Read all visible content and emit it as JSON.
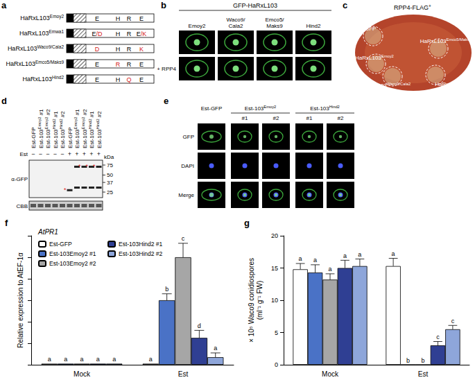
{
  "figure": {
    "a": {
      "label": "a",
      "rows": [
        {
          "name": {
            "text": "HaRxL103",
            "sup": "Emoy2"
          },
          "residues": [
            [
              [
                "E",
                "#000000"
              ]
            ],
            [
              [
                "H",
                "#000000"
              ]
            ],
            [
              [
                "R",
                "#000000"
              ]
            ],
            [
              [
                "E",
                "#000000"
              ]
            ]
          ]
        },
        {
          "name": {
            "text": "HaRxL103",
            "sup": "Emwa1"
          },
          "residues": [
            [
              [
                "E",
                "#000000"
              ],
              [
                "/D",
                "#d42020"
              ]
            ],
            [
              [
                "H",
                "#000000"
              ]
            ],
            [
              [
                "R",
                "#000000"
              ]
            ],
            [
              [
                "E",
                "#000000"
              ],
              [
                "/K",
                "#d42020"
              ]
            ]
          ]
        },
        {
          "name": {
            "text": "HaRxL103",
            "sup": "Waco9/Cala2"
          },
          "residues": [
            [
              [
                "D",
                "#d42020"
              ]
            ],
            [
              [
                "H",
                "#000000"
              ]
            ],
            [
              [
                "R",
                "#000000"
              ]
            ],
            [
              [
                "K",
                "#d42020"
              ]
            ]
          ]
        },
        {
          "name": {
            "text": "HaRxL103",
            "sup": "Emco5/Maks9"
          },
          "residues": [
            [
              [
                "E",
                "#000000"
              ]
            ],
            [
              [
                "R",
                "#d42020"
              ]
            ],
            [
              [
                "R",
                "#000000"
              ]
            ],
            [
              [
                "E",
                "#000000"
              ]
            ]
          ]
        },
        {
          "name": {
            "text": "HaRxL103",
            "sup": "Hind2"
          },
          "residues": [
            [
              [
                "E",
                "#000000"
              ]
            ],
            [
              [
                "H",
                "#000000"
              ]
            ],
            [
              [
                "Q",
                "#d42020"
              ]
            ],
            [
              [
                "E",
                "#000000"
              ]
            ]
          ]
        }
      ]
    },
    "b": {
      "label": "b",
      "title": "GFP-HaRxL103",
      "columns": [
        [
          "Emoy2"
        ],
        [
          "Waco9/",
          "Cala2"
        ],
        [
          "Emco5/",
          "Maks9"
        ],
        [
          "Hind2"
        ]
      ],
      "row_label": "+ RPP4"
    },
    "c": {
      "label": "c",
      "header": {
        "text": "RPP4-FLAG",
        "sup": "+"
      },
      "spots": [
        {
          "text": "GFP"
        },
        {
          "text": "HaRxL103",
          "sup": "Emoy2"
        },
        {
          "text": "HaRxL103",
          "sup": "Emco5/Maks9"
        },
        {
          "text": "HaRxL103",
          "sup": "Waco9/Cala2"
        },
        {
          "text": "HaRxL103",
          "sup": "Hind2"
        }
      ]
    },
    "d": {
      "label": "d",
      "lanes": [
        {
          "name": {
            "text": "Est-GFP"
          },
          "treatment": "−",
          "bands": []
        },
        {
          "name": {
            "text": "Est-103",
            "sup": "Emoy2",
            "after": " #1"
          },
          "treatment": "−",
          "bands": []
        },
        {
          "name": {
            "text": "Est-103",
            "sup": "Emoy2",
            "after": " #2"
          },
          "treatment": "−",
          "bands": []
        },
        {
          "name": {
            "text": "Est-103",
            "sup": "Hind2",
            "after": " #1"
          },
          "treatment": "−",
          "bands": []
        },
        {
          "name": {
            "text": "Est-103",
            "sup": "Hind2",
            "after": " #2"
          },
          "treatment": "−",
          "bands": []
        },
        {
          "name": {
            "text": "Est-GFP"
          },
          "treatment": "+",
          "bands": [
            {
              "kDa": 27,
              "marked": true
            }
          ]
        },
        {
          "name": {
            "text": "Est-103",
            "sup": "Emoy2",
            "after": " #1"
          },
          "treatment": "+",
          "bands": [
            {
              "kDa": 70,
              "marked": false
            },
            {
              "kDa": 30,
              "marked": false
            }
          ]
        },
        {
          "name": {
            "text": "Est-103",
            "sup": "Emoy2",
            "after": " #2"
          },
          "treatment": "+",
          "bands": [
            {
              "kDa": 70,
              "marked": true
            },
            {
              "kDa": 30,
              "marked": false
            }
          ]
        },
        {
          "name": {
            "text": "Est-103",
            "sup": "Hind2",
            "after": " #1"
          },
          "treatment": "+",
          "bands": [
            {
              "kDa": 70,
              "marked": true
            },
            {
              "kDa": 30,
              "marked": false
            }
          ]
        },
        {
          "name": {
            "text": "Est-103",
            "sup": "Hind2",
            "after": " #2"
          },
          "treatment": "+",
          "bands": [
            {
              "kDa": 70,
              "marked": true
            },
            {
              "kDa": 30,
              "marked": false
            }
          ]
        }
      ],
      "treatment_label": "Est",
      "antibody": "α-GFP",
      "stain": "CBB",
      "unit": "kDa",
      "markers": [
        75,
        50,
        37,
        25
      ],
      "asterisk": "*"
    },
    "e": {
      "label": "e",
      "columns": [
        {
          "text": "Est-GFP",
          "subs": []
        },
        {
          "text": "Est-103",
          "sup": "Emoy2",
          "subs": [
            "#1",
            "#2"
          ]
        },
        {
          "text": "Est-103",
          "sup": "Hind2",
          "subs": [
            "#1",
            "#2"
          ]
        }
      ],
      "rows": [
        "GFP",
        "DAPI",
        "Merge"
      ]
    }
  },
  "chart_data": [
    {
      "panel": "f",
      "type": "bar",
      "title": "AtPR1",
      "y_label": "Relative expression to AtEF-1α",
      "categories": [
        "Mock",
        "Est"
      ],
      "series": [
        {
          "name": "Est-GFP",
          "color": "#ffffff",
          "values": [
            0.01,
            0.01
          ],
          "errors": [
            0,
            0
          ],
          "letters": [
            "a",
            "a"
          ]
        },
        {
          "name": "Est-103Emoy2 #1",
          "color": "#4a72c6",
          "values": [
            0.01,
            0.6
          ],
          "errors": [
            0,
            0.06
          ],
          "letters": [
            "a",
            "b"
          ]
        },
        {
          "name": "Est-103Emoy2 #2",
          "color": "#a6a6a6",
          "values": [
            0.01,
            1.0
          ],
          "errors": [
            0,
            0.13
          ],
          "letters": [
            "a",
            "c"
          ]
        },
        {
          "name": "Est-103Hind2 #1",
          "color": "#2f3f93",
          "values": [
            0.01,
            0.25
          ],
          "errors": [
            0,
            0.07
          ],
          "letters": [
            "a",
            "d"
          ]
        },
        {
          "name": "Est-103Hind2 #2",
          "color": "#8ea6da",
          "values": [
            0.01,
            0.07
          ],
          "errors": [
            0,
            0.04
          ],
          "letters": [
            "a",
            "a"
          ]
        }
      ],
      "ylim": [
        0,
        1.2
      ],
      "yticks": [
        0,
        0.2,
        0.4,
        0.6,
        0.8,
        1,
        1.2
      ],
      "tick_labels": "x",
      "legend": "top-left",
      "grid": false
    },
    {
      "panel": "g",
      "type": "bar",
      "y_label": [
        "× 10⁵ Waco9 conidiospores",
        "(ml⁻¹ g⁻¹ FW)"
      ],
      "categories": [
        "Mock",
        "Est"
      ],
      "series": [
        {
          "color": "#ffffff",
          "values": [
            14.8,
            15.3
          ],
          "errors": [
            0.9,
            1.2
          ],
          "letters": [
            "a",
            "a"
          ]
        },
        {
          "color": "#4a72c6",
          "values": [
            14.3,
            0
          ],
          "errors": [
            1.2,
            0
          ],
          "letters": [
            "a",
            "b"
          ]
        },
        {
          "color": "#a6a6a6",
          "values": [
            13.2,
            0
          ],
          "errors": [
            0.9,
            0
          ],
          "letters": [
            "a",
            "b"
          ]
        },
        {
          "color": "#2f3f93",
          "values": [
            15.0,
            3.0
          ],
          "errors": [
            1.2,
            0.6
          ],
          "letters": [
            "a",
            "c"
          ]
        },
        {
          "color": "#8ea6da",
          "values": [
            15.3,
            5.5
          ],
          "errors": [
            1.1,
            0.6
          ],
          "letters": [
            "a",
            "c"
          ]
        }
      ],
      "ylim": [
        0,
        20
      ],
      "yticks": [
        0,
        5,
        10,
        15,
        20
      ],
      "grid": false
    }
  ]
}
